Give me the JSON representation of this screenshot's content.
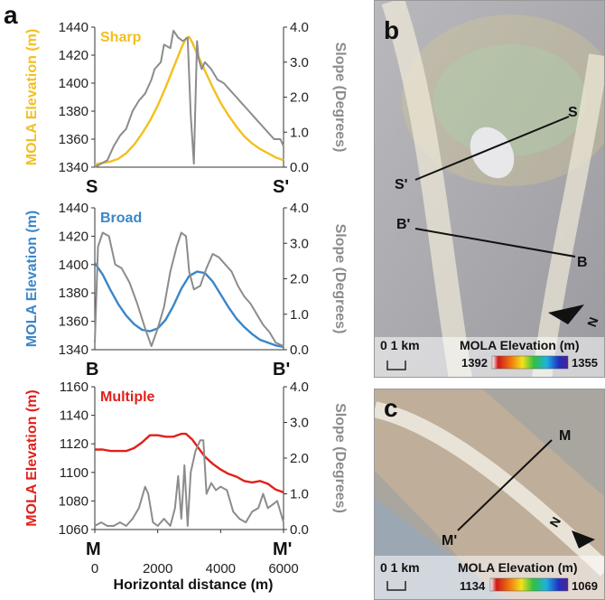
{
  "chart_data": [
    {
      "type": "line",
      "title": "Sharp",
      "ylabel": "MOLA Elevation (m)",
      "y2label": "Slope (Degrees)",
      "ylim": [
        1340,
        1440
      ],
      "y2lim": [
        0,
        4
      ],
      "yticks": [
        "1340",
        "1360",
        "1380",
        "1400",
        "1420",
        "1440"
      ],
      "y2ticks": [
        "0.0",
        "1.0",
        "2.0",
        "3.0",
        "4.0"
      ],
      "xlim": [
        0,
        6000
      ],
      "endpoints": [
        "S",
        "S'"
      ],
      "colors": {
        "elevation": "#F2C01E",
        "slope": "#8C8C8C"
      },
      "series": [
        {
          "name": "MOLA Elevation",
          "axis": "left",
          "x": [
            0,
            250,
            500,
            750,
            1000,
            1250,
            1500,
            1750,
            2000,
            2250,
            2500,
            2750,
            2900,
            3000,
            3100,
            3250,
            3500,
            3750,
            4000,
            4250,
            4500,
            4750,
            5000,
            5250,
            5500,
            5750,
            6000
          ],
          "y": [
            1342,
            1343,
            1344,
            1346,
            1350,
            1356,
            1364,
            1373,
            1384,
            1397,
            1411,
            1425,
            1432,
            1433,
            1429,
            1421,
            1409,
            1397,
            1386,
            1377,
            1369,
            1362,
            1357,
            1353,
            1350,
            1347,
            1345
          ]
        },
        {
          "name": "Slope",
          "axis": "right",
          "x": [
            0,
            200,
            400,
            600,
            800,
            1000,
            1200,
            1400,
            1600,
            1800,
            1900,
            2000,
            2100,
            2200,
            2400,
            2500,
            2650,
            2800,
            2950,
            3050,
            3150,
            3250,
            3300,
            3400,
            3500,
            3700,
            3900,
            4100,
            4300,
            4500,
            4700,
            4900,
            5100,
            5300,
            5500,
            5700,
            5900,
            6000
          ],
          "y": [
            0.0,
            0.1,
            0.2,
            0.6,
            0.9,
            1.1,
            1.6,
            1.9,
            2.1,
            2.5,
            2.8,
            2.9,
            3.0,
            3.5,
            3.4,
            3.9,
            3.7,
            3.6,
            3.7,
            1.5,
            0.1,
            3.6,
            3.1,
            2.8,
            3.0,
            2.8,
            2.5,
            2.4,
            2.2,
            2.0,
            1.8,
            1.6,
            1.4,
            1.2,
            1.0,
            0.8,
            0.8,
            0.6
          ]
        }
      ]
    },
    {
      "type": "line",
      "title": "Broad",
      "ylabel": "MOLA Elevation (m)",
      "y2label": "Slope (Degrees)",
      "ylim": [
        1340,
        1440
      ],
      "y2lim": [
        0,
        4
      ],
      "yticks": [
        "1340",
        "1360",
        "1380",
        "1400",
        "1420",
        "1440"
      ],
      "y2ticks": [
        "0.0",
        "1.0",
        "2.0",
        "3.0",
        "4.0"
      ],
      "xlim": [
        0,
        6000
      ],
      "endpoints": [
        "B",
        "B'"
      ],
      "colors": {
        "elevation": "#3A86C8",
        "slope": "#8C8C8C"
      },
      "series": [
        {
          "name": "MOLA Elevation",
          "axis": "left",
          "x": [
            0,
            250,
            500,
            750,
            1000,
            1250,
            1500,
            1750,
            2000,
            2250,
            2500,
            2750,
            3000,
            3250,
            3500,
            3750,
            4000,
            4250,
            4500,
            4750,
            5000,
            5250,
            5500,
            5750,
            6000
          ],
          "y": [
            1401,
            1393,
            1382,
            1372,
            1364,
            1358,
            1354,
            1353,
            1355,
            1361,
            1371,
            1383,
            1392,
            1395,
            1394,
            1388,
            1379,
            1370,
            1362,
            1356,
            1351,
            1347,
            1345,
            1343,
            1342
          ]
        },
        {
          "name": "Slope",
          "axis": "right",
          "x": [
            0,
            100,
            250,
            450,
            650,
            850,
            1100,
            1350,
            1600,
            1800,
            2000,
            2200,
            2400,
            2600,
            2750,
            2900,
            3000,
            3150,
            3350,
            3550,
            3750,
            3950,
            4150,
            4350,
            4550,
            4750,
            4950,
            5150,
            5350,
            5550,
            5750,
            6000
          ],
          "y": [
            0.2,
            2.9,
            3.3,
            3.2,
            2.4,
            2.3,
            1.9,
            1.3,
            0.6,
            0.1,
            0.6,
            1.2,
            2.2,
            2.9,
            3.3,
            3.2,
            2.2,
            1.7,
            1.8,
            2.3,
            2.7,
            2.6,
            2.4,
            2.2,
            1.8,
            1.5,
            1.3,
            1.0,
            0.7,
            0.5,
            0.2,
            0.1
          ]
        }
      ]
    },
    {
      "type": "line",
      "title": "Multiple",
      "ylabel": "MOLA Elevation (m)",
      "y2label": "Slope (Degrees)",
      "xlabel": "Horizontal distance (m)",
      "ylim": [
        1060,
        1160
      ],
      "y2lim": [
        0,
        4
      ],
      "yticks": [
        "1060",
        "1080",
        "1100",
        "1120",
        "1140",
        "1160"
      ],
      "y2ticks": [
        "0.0",
        "1.0",
        "2.0",
        "3.0",
        "4.0"
      ],
      "xticks": [
        "0",
        "2000",
        "4000",
        "6000"
      ],
      "xlim": [
        0,
        6000
      ],
      "endpoints": [
        "M",
        "M'"
      ],
      "colors": {
        "elevation": "#E0201B",
        "slope": "#8C8C8C"
      },
      "series": [
        {
          "name": "MOLA Elevation",
          "axis": "left",
          "x": [
            0,
            250,
            500,
            750,
            1000,
            1250,
            1500,
            1750,
            2000,
            2250,
            2500,
            2750,
            2900,
            3100,
            3300,
            3500,
            3750,
            4000,
            4250,
            4500,
            4750,
            5000,
            5250,
            5500,
            5750,
            6000
          ],
          "y": [
            1116,
            1116,
            1115,
            1115,
            1115,
            1117,
            1121,
            1126,
            1126,
            1125,
            1125,
            1127,
            1127,
            1123,
            1117,
            1111,
            1106,
            1102,
            1099,
            1097,
            1094,
            1093,
            1094,
            1092,
            1088,
            1086
          ]
        },
        {
          "name": "Slope",
          "axis": "right",
          "x": [
            0,
            200,
            400,
            600,
            800,
            1000,
            1200,
            1400,
            1600,
            1700,
            1850,
            2000,
            2200,
            2400,
            2550,
            2650,
            2750,
            2850,
            2950,
            3050,
            3200,
            3350,
            3450,
            3550,
            3700,
            3850,
            4000,
            4200,
            4400,
            4600,
            4800,
            5000,
            5200,
            5350,
            5500,
            5650,
            5800,
            6000
          ],
          "y": [
            0.1,
            0.2,
            0.1,
            0.1,
            0.2,
            0.1,
            0.3,
            0.6,
            1.2,
            1.0,
            0.2,
            0.1,
            0.3,
            0.1,
            0.6,
            1.5,
            0.3,
            1.8,
            0.1,
            1.6,
            2.2,
            2.5,
            2.5,
            1.0,
            1.3,
            1.1,
            1.2,
            1.1,
            0.5,
            0.3,
            0.2,
            0.5,
            0.6,
            1.0,
            0.6,
            0.7,
            0.8,
            0.2
          ]
        }
      ]
    }
  ],
  "panels": {
    "a": "a",
    "b": "b",
    "c": "c"
  },
  "map_b": {
    "labels": {
      "s": "S",
      "s_prime": "S'",
      "b_prime": "B'",
      "b": "B"
    },
    "scale_label": "0 1 km",
    "legend_title": "MOLA Elevation (m)",
    "legend_min": "1392",
    "legend_max": "1355",
    "north_symbol": "N"
  },
  "map_c": {
    "labels": {
      "m": "M",
      "m_prime": "M'"
    },
    "scale_label": "0 1 km",
    "legend_title": "MOLA Elevation (m)",
    "legend_min": "1134",
    "legend_max": "1069",
    "north_symbol": "N"
  }
}
